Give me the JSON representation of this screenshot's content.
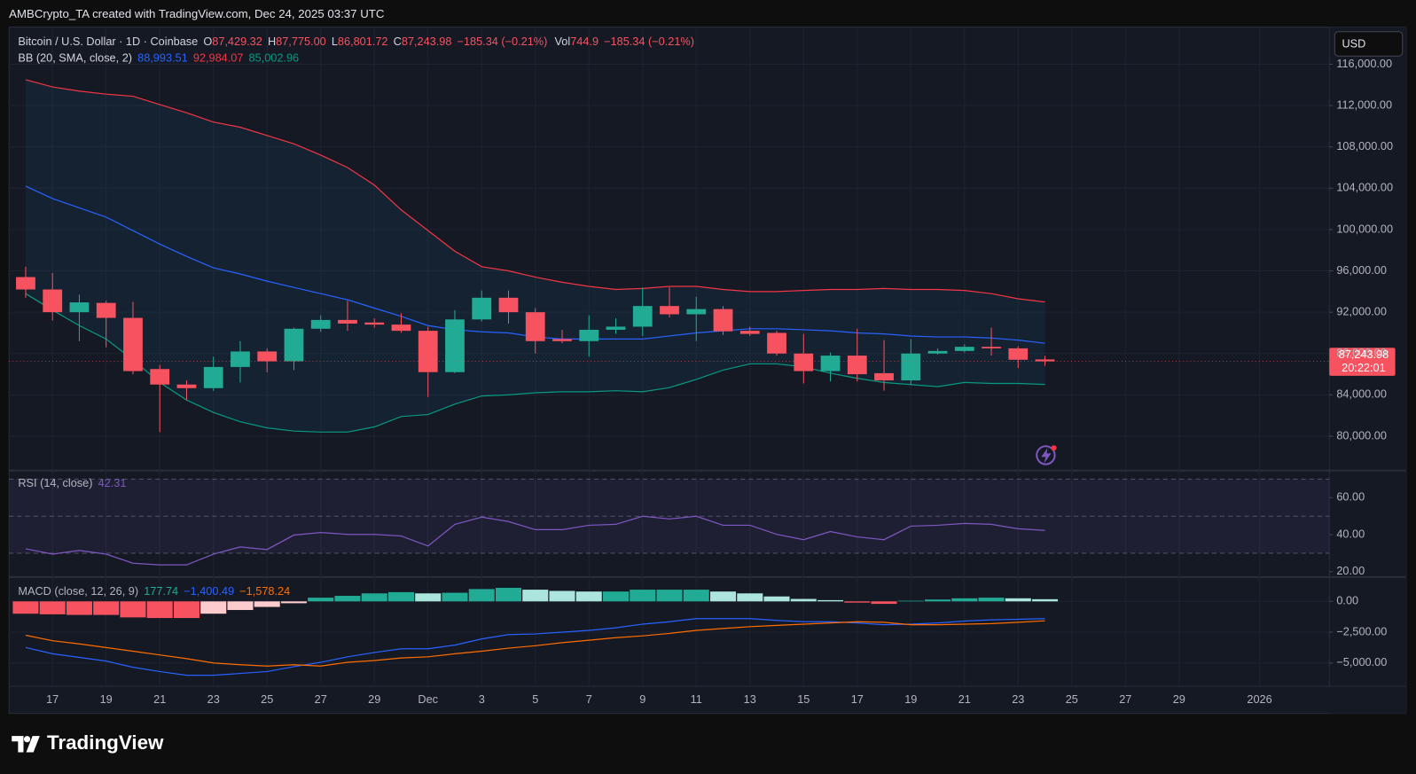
{
  "header": "AMBCrypto_TA created with TradingView.com, Dec 24, 2025 03:37 UTC",
  "brand": "TradingView",
  "chart_data": [
    {
      "type": "candlestick",
      "title": "Bitcoin / U.S. Dollar · 1D · Coinbase",
      "ohlc_legend": [
        {
          "label": "O",
          "value": "87,429.32"
        },
        {
          "label": "H",
          "value": "87,775.00"
        },
        {
          "label": "L",
          "value": "86,801.72"
        },
        {
          "label": "C",
          "value": "87,243.98"
        }
      ],
      "change": "−185.34 (−0.21%)",
      "volume_label": "Vol",
      "volume": "744.9",
      "volume_change": "−185.34 (−0.21%)",
      "currency": "USD",
      "last_price": "87,243.98",
      "countdown": "20:22:01",
      "x": [
        16,
        17,
        18,
        19,
        20,
        21,
        22,
        23,
        24,
        25,
        26,
        27,
        28,
        29,
        30,
        31,
        32,
        33,
        34,
        35,
        36,
        37,
        38,
        39,
        40,
        41,
        42,
        43,
        44,
        45,
        46,
        47,
        48,
        49,
        50,
        51,
        52,
        53,
        54
      ],
      "xlim": [
        15.38,
        64.6
      ],
      "xticks": [
        17,
        19,
        21,
        23,
        25,
        27,
        29,
        {
          "value": 31,
          "label": "Dec"
        },
        {
          "value": 33,
          "label": "3"
        },
        {
          "value": 35,
          "label": "5"
        },
        {
          "value": 37,
          "label": "7"
        },
        {
          "value": 39,
          "label": "9"
        },
        {
          "value": 41,
          "label": "11"
        },
        {
          "value": 43,
          "label": "13"
        },
        {
          "value": 45,
          "label": "15"
        },
        {
          "value": 47,
          "label": "17"
        },
        {
          "value": 49,
          "label": "19"
        },
        {
          "value": 51,
          "label": "21"
        },
        {
          "value": 53,
          "label": "23"
        },
        {
          "value": 55,
          "label": "25"
        },
        {
          "value": 57,
          "label": "27"
        },
        {
          "value": 59,
          "label": "29"
        },
        {
          "value": 62,
          "label": "2026"
        }
      ],
      "open": [
        95400,
        94200,
        92000,
        92900,
        91450,
        86500,
        85000,
        84650,
        86700,
        88200,
        87250,
        90400,
        91250,
        91000,
        90800,
        90200,
        86200,
        91300,
        93400,
        92000,
        89400,
        89200,
        90300,
        90600,
        92600,
        91800,
        92300,
        90200,
        90000,
        88000,
        86300,
        87800,
        86100,
        85400,
        88000,
        88250,
        88650,
        88500,
        87429.32
      ],
      "high": [
        96400,
        95800,
        93700,
        93100,
        93000,
        86900,
        85400,
        87700,
        89200,
        88500,
        90500,
        91700,
        93100,
        91400,
        91900,
        90600,
        92200,
        94100,
        94100,
        92400,
        90300,
        91700,
        91400,
        94400,
        94400,
        93500,
        92600,
        90600,
        90200,
        89900,
        88100,
        90400,
        89300,
        89400,
        88500,
        88900,
        90500,
        88700,
        87775
      ],
      "low": [
        93400,
        91200,
        89200,
        88600,
        86000,
        80400,
        83500,
        84400,
        85200,
        86200,
        86400,
        90100,
        90200,
        90500,
        90000,
        83800,
        86100,
        91100,
        90900,
        88000,
        89000,
        87700,
        89900,
        89700,
        91500,
        89200,
        89800,
        89700,
        87800,
        85100,
        85300,
        85300,
        84400,
        85000,
        87900,
        88100,
        87800,
        86600,
        86801.72
      ],
      "close": [
        94200,
        92000,
        92950,
        91450,
        86300,
        85000,
        84650,
        86700,
        88200,
        87250,
        90400,
        91250,
        90900,
        90800,
        90200,
        86200,
        91300,
        93400,
        92000,
        89200,
        89200,
        90300,
        90600,
        92600,
        91800,
        92300,
        90150,
        89900,
        88000,
        86300,
        87800,
        86000,
        85400,
        88000,
        88250,
        88650,
        88500,
        87400,
        87243.98
      ],
      "up_color": "#22ab94",
      "down_color": "#f7525f",
      "ylim": [
        76940,
        119500
      ],
      "yticks": [
        {
          "value": 80000,
          "label": "80,000.00"
        },
        {
          "value": 84000,
          "label": "84,000.00"
        },
        {
          "value": 88000,
          "label": "88,000.00"
        },
        {
          "value": 92000,
          "label": "92,000.00"
        },
        {
          "value": 96000,
          "label": "96,000.00"
        },
        {
          "value": 100000,
          "label": "100,000.00"
        },
        {
          "value": 104000,
          "label": "104,000.00"
        },
        {
          "value": 108000,
          "label": "108,000.00"
        },
        {
          "value": 112000,
          "label": "112,000.00"
        },
        {
          "value": 116000,
          "label": "116,000.00"
        }
      ],
      "grid": true,
      "bollinger": {
        "title": "BB (20, SMA, close, 2)",
        "fill": "rgba(33,150,243,0.07)",
        "series": [
          {
            "value_label": "88,993.51",
            "color": "#2962ff",
            "values": [
              104200,
              103000,
              102100,
              101200,
              99900,
              98600,
              97400,
              96300,
              95700,
              95000,
              94400,
              93800,
              93200,
              92400,
              91600,
              90700,
              90300,
              90100,
              90000,
              89600,
              89400,
              89400,
              89400,
              89400,
              89700,
              90000,
              90200,
              90400,
              90400,
              90300,
              90200,
              90000,
              89900,
              89700,
              89600,
              89600,
              89500,
              89300,
              88993.51
            ]
          },
          {
            "value_label": "92,984.07",
            "color": "#f23645",
            "values": [
              114500,
              113800,
              113400,
              113100,
              112900,
              112100,
              111300,
              110400,
              109900,
              109100,
              108300,
              107200,
              106000,
              104300,
              101900,
              99900,
              97900,
              96400,
              96000,
              95400,
              94900,
              94500,
              94200,
              94300,
              94500,
              94500,
              94200,
              94000,
              94000,
              94100,
              94200,
              94200,
              94300,
              94200,
              94200,
              94100,
              93800,
              93300,
              92984.07
            ]
          },
          {
            "value_label": "85,002.96",
            "color": "#089981",
            "values": [
              93800,
              92200,
              90700,
              89400,
              87400,
              85200,
              83500,
              82300,
              81400,
              80800,
              80500,
              80400,
              80400,
              80900,
              81900,
              82100,
              83100,
              83900,
              84000,
              84200,
              84300,
              84300,
              84400,
              84300,
              84700,
              85500,
              86400,
              87000,
              87000,
              86700,
              86100,
              85600,
              85200,
              85000,
              84800,
              85200,
              85100,
              85100,
              85002.96
            ]
          }
        ]
      }
    },
    {
      "type": "line",
      "title": "RSI (14, close)",
      "value_label": "42.31",
      "color": "#7e57c2",
      "values": [
        32.4,
        29.5,
        31.5,
        29.5,
        24.6,
        23.7,
        23.7,
        29.5,
        33.4,
        32,
        39.8,
        41.2,
        40.2,
        40.2,
        39.3,
        33.9,
        45.6,
        49.5,
        47.1,
        42.7,
        42.7,
        45.1,
        45.6,
        50,
        48.5,
        50,
        45.1,
        45.1,
        40.2,
        37.3,
        41.7,
        38.8,
        37.3,
        44.6,
        45.1,
        46.1,
        45.6,
        43.2,
        42.31
      ],
      "ylim": [
        17.6,
        72.7
      ],
      "yticks": [
        {
          "value": 20,
          "label": "20.00"
        },
        {
          "value": 40,
          "label": "40.00"
        },
        {
          "value": 60,
          "label": "60.00"
        }
      ],
      "bands": [
        70,
        50,
        30
      ],
      "band_fill": "rgba(126,87,194,0.1)"
    },
    {
      "type": "macd",
      "title": "MACD (close, 12, 26, 9)",
      "histogram": {
        "value_label": "177.74",
        "colors": {
          "grow_above": "#22ab94",
          "fall_above": "#ace5dc",
          "grow_below": "#fccbcd",
          "fall_below": "#f7525f"
        },
        "values": [
          -1000,
          -1050,
          -1100,
          -1100,
          -1300,
          -1350,
          -1350,
          -1000,
          -700,
          -450,
          -150,
          300,
          450,
          650,
          750,
          650,
          700,
          1000,
          1100,
          950,
          850,
          800,
          800,
          950,
          950,
          950,
          800,
          650,
          400,
          200,
          100,
          -100,
          -200,
          50,
          150,
          250,
          300,
          250,
          177.74
        ]
      },
      "series": [
        {
          "value_label": "−1,400.49",
          "color": "#2962ff",
          "values": [
            -3750,
            -4250,
            -4550,
            -4850,
            -5350,
            -5700,
            -6000,
            -6000,
            -5850,
            -5700,
            -5300,
            -4950,
            -4500,
            -4150,
            -3850,
            -3850,
            -3550,
            -3050,
            -2700,
            -2650,
            -2500,
            -2350,
            -2150,
            -1850,
            -1650,
            -1400,
            -1400,
            -1400,
            -1550,
            -1650,
            -1650,
            -1750,
            -1900,
            -1850,
            -1750,
            -1600,
            -1500,
            -1450,
            -1400.49
          ]
        },
        {
          "value_label": "−1,578.24",
          "color": "#ff6d00",
          "values": [
            -2750,
            -3200,
            -3450,
            -3750,
            -4050,
            -4350,
            -4650,
            -5000,
            -5150,
            -5250,
            -5150,
            -5250,
            -4950,
            -4800,
            -4600,
            -4500,
            -4250,
            -4050,
            -3800,
            -3600,
            -3350,
            -3150,
            -2950,
            -2800,
            -2600,
            -2350,
            -2200,
            -2050,
            -1950,
            -1850,
            -1750,
            -1650,
            -1700,
            -1900,
            -1900,
            -1850,
            -1800,
            -1700,
            -1578.24
          ]
        }
      ],
      "ylim": [
        -6900,
        1900
      ],
      "yticks": [
        {
          "value": 0,
          "label": "0.00"
        },
        {
          "value": -2500,
          "label": "−2,500.00"
        },
        {
          "value": -5000,
          "label": "−5,000.00"
        }
      ]
    }
  ]
}
